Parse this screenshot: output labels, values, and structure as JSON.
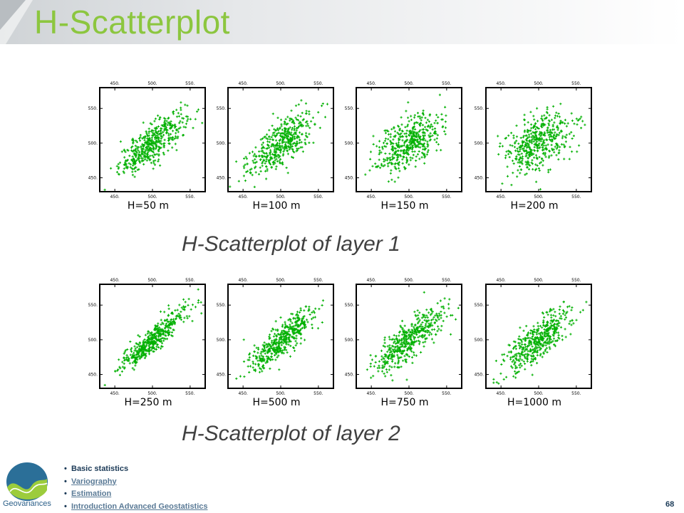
{
  "slide": {
    "title": "H-Scatterplot",
    "caption_layer1": "H-Scatterplot of layer 1",
    "caption_layer2": "H-Scatterplot of layer 2",
    "page_number": "68",
    "logo_text": "Geovariances"
  },
  "nav": {
    "items": [
      {
        "label": "Basic statistics",
        "link": false
      },
      {
        "label": "Variography",
        "link": true
      },
      {
        "label": "Estimation",
        "link": true
      },
      {
        "label": "Introduction Advanced Geostatistics",
        "link": true
      }
    ]
  },
  "colors": {
    "title": "#8cc63f",
    "points": "#00b000",
    "caption": "#404040",
    "nav_text": "#1b3a57"
  },
  "chart_data": [
    {
      "type": "scatter",
      "title": "H=50 m",
      "layer": 1,
      "lag_m": 50,
      "correlation": 0.8,
      "center": [
        500,
        500
      ],
      "n_points": 450,
      "xlim": [
        430,
        570
      ],
      "ylim": [
        430,
        580
      ],
      "xticks": [
        450,
        500,
        550
      ],
      "yticks": [
        450,
        500,
        550
      ],
      "tick_labels": [
        "450.",
        "500.",
        "550."
      ]
    },
    {
      "type": "scatter",
      "title": "H=100 m",
      "layer": 1,
      "lag_m": 100,
      "correlation": 0.7,
      "center": [
        500,
        500
      ],
      "n_points": 450,
      "xlim": [
        430,
        570
      ],
      "ylim": [
        430,
        580
      ],
      "xticks": [
        450,
        500,
        550
      ],
      "yticks": [
        450,
        500,
        550
      ],
      "tick_labels": [
        "450.",
        "500.",
        "550."
      ]
    },
    {
      "type": "scatter",
      "title": "H=150 m",
      "layer": 1,
      "lag_m": 150,
      "correlation": 0.55,
      "center": [
        500,
        500
      ],
      "n_points": 450,
      "xlim": [
        430,
        570
      ],
      "ylim": [
        430,
        580
      ],
      "xticks": [
        450,
        500,
        550
      ],
      "yticks": [
        450,
        500,
        550
      ],
      "tick_labels": [
        "450.",
        "500.",
        "550."
      ]
    },
    {
      "type": "scatter",
      "title": "H=200 m",
      "layer": 1,
      "lag_m": 200,
      "correlation": 0.4,
      "center": [
        500,
        500
      ],
      "n_points": 450,
      "xlim": [
        430,
        570
      ],
      "ylim": [
        430,
        580
      ],
      "xticks": [
        450,
        500,
        550
      ],
      "yticks": [
        450,
        500,
        550
      ],
      "tick_labels": [
        "450.",
        "500.",
        "550."
      ]
    },
    {
      "type": "scatter",
      "title": "H=250 m",
      "layer": 2,
      "lag_m": 250,
      "correlation": 0.9,
      "center": [
        500,
        500
      ],
      "n_points": 450,
      "xlim": [
        430,
        570
      ],
      "ylim": [
        430,
        580
      ],
      "xticks": [
        450,
        500,
        550
      ],
      "yticks": [
        450,
        500,
        550
      ],
      "tick_labels": [
        "450.",
        "500.",
        "550."
      ]
    },
    {
      "type": "scatter",
      "title": "H=500 m",
      "layer": 2,
      "lag_m": 500,
      "correlation": 0.85,
      "center": [
        500,
        500
      ],
      "n_points": 450,
      "xlim": [
        430,
        570
      ],
      "ylim": [
        430,
        580
      ],
      "xticks": [
        450,
        500,
        550
      ],
      "yticks": [
        450,
        500,
        550
      ],
      "tick_labels": [
        "450.",
        "500.",
        "550."
      ]
    },
    {
      "type": "scatter",
      "title": "H=750 m",
      "layer": 2,
      "lag_m": 750,
      "correlation": 0.8,
      "center": [
        500,
        500
      ],
      "n_points": 450,
      "xlim": [
        430,
        570
      ],
      "ylim": [
        430,
        580
      ],
      "xticks": [
        450,
        500,
        550
      ],
      "yticks": [
        450,
        500,
        550
      ],
      "tick_labels": [
        "450.",
        "500.",
        "550."
      ]
    },
    {
      "type": "scatter",
      "title": "H=1000 m",
      "layer": 2,
      "lag_m": 1000,
      "correlation": 0.75,
      "center": [
        500,
        500
      ],
      "n_points": 450,
      "xlim": [
        430,
        570
      ],
      "ylim": [
        430,
        580
      ],
      "xticks": [
        450,
        500,
        550
      ],
      "yticks": [
        450,
        500,
        550
      ],
      "tick_labels": [
        "450.",
        "500.",
        "550."
      ]
    }
  ]
}
